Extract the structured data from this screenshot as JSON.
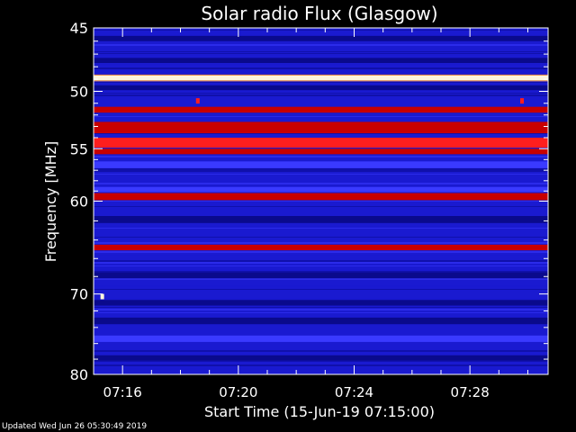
{
  "footer": {
    "updated": "Updated Wed Jun 26 05:30:49 2019"
  },
  "colors": {
    "background": "#000000",
    "base": "#1a1ad0",
    "dark": "#0a0a8c",
    "bright": "#3a3aff",
    "red": "#c80000",
    "hot": "#ff1e1e",
    "white": "#fff6dc",
    "axis": "#ffffff"
  },
  "chart_data": {
    "type": "heatmap",
    "title": "Solar radio Flux (Glasgow)",
    "xlabel": "Start Time (15-Jun-19 07:15:00)",
    "ylabel": "Frequency [MHz]",
    "x_range_minutes": [
      0,
      15.7
    ],
    "y_range_mhz": [
      45,
      80
    ],
    "y_scale": "log",
    "x_ticks": [
      {
        "label": "07:16",
        "minute": 1
      },
      {
        "label": "07:20",
        "minute": 5
      },
      {
        "label": "07:24",
        "minute": 9
      },
      {
        "label": "07:28",
        "minute": 13
      }
    ],
    "y_ticks": [
      {
        "label": "45",
        "value": 45
      },
      {
        "label": "50",
        "value": 50
      },
      {
        "label": "55",
        "value": 55
      },
      {
        "label": "60",
        "value": 60
      },
      {
        "label": "70",
        "value": 70
      },
      {
        "label": "80",
        "value": 80
      }
    ],
    "emission_bands": [
      {
        "f_from": 45.6,
        "f_to": 46.0,
        "level": "dark"
      },
      {
        "f_from": 47.3,
        "f_to": 47.7,
        "level": "dark"
      },
      {
        "f_from": 48.7,
        "f_to": 49.1,
        "level": "white"
      },
      {
        "f_from": 49.5,
        "f_to": 49.9,
        "level": "dark"
      },
      {
        "f_from": 51.3,
        "f_to": 51.8,
        "level": "red"
      },
      {
        "f_from": 52.6,
        "f_to": 53.6,
        "level": "red"
      },
      {
        "f_from": 54.0,
        "f_to": 54.9,
        "level": "hot"
      },
      {
        "f_from": 55.0,
        "f_to": 55.5,
        "level": "red"
      },
      {
        "f_from": 56.2,
        "f_to": 56.8,
        "level": "bright"
      },
      {
        "f_from": 58.6,
        "f_to": 59.1,
        "level": "bright"
      },
      {
        "f_from": 59.2,
        "f_to": 59.9,
        "level": "red"
      },
      {
        "f_from": 61.5,
        "f_to": 62.2,
        "level": "dark"
      },
      {
        "f_from": 64.5,
        "f_to": 65.1,
        "level": "red"
      },
      {
        "f_from": 67.5,
        "f_to": 68.2,
        "level": "dark"
      },
      {
        "f_from": 70.7,
        "f_to": 71.3,
        "level": "dark"
      },
      {
        "f_from": 72.8,
        "f_to": 73.6,
        "level": "dark"
      },
      {
        "f_from": 75.0,
        "f_to": 75.8,
        "level": "bright"
      },
      {
        "f_from": 77.5,
        "f_to": 78.2,
        "level": "dark"
      }
    ],
    "hot_spots": [
      {
        "minute": 3.6,
        "f": 50.8,
        "level": "hot"
      },
      {
        "minute": 14.8,
        "f": 50.8,
        "level": "hot"
      },
      {
        "minute": 0.3,
        "f": 70.3,
        "level": "white"
      }
    ]
  }
}
